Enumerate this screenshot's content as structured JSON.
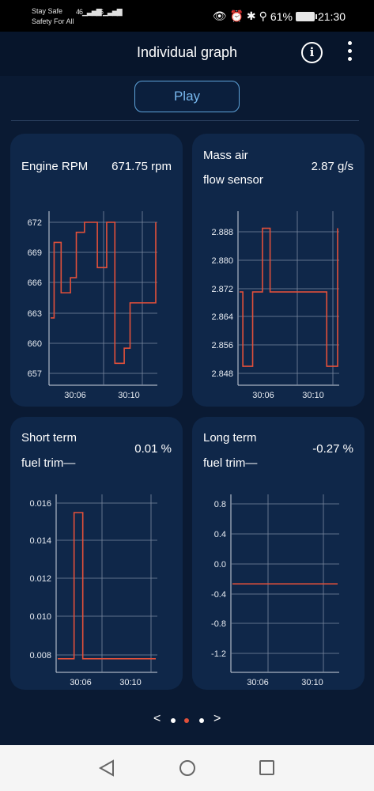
{
  "status_bar": {
    "carrier_line1": "Stay Safe",
    "carrier_line2": "Safety For All",
    "signal1": "46",
    "signal2": "46",
    "battery": "61%",
    "time": "21:30"
  },
  "header": {
    "title": "Individual graph"
  },
  "play_label": "Play",
  "cards": [
    {
      "name_line1": "Engine RPM",
      "name_line2": "",
      "value": "671.75 rpm"
    },
    {
      "name_line1": "Mass air",
      "name_line2": "flow sensor",
      "value": "2.87 g/s"
    },
    {
      "name_line1": "Short term",
      "name_line2": "fuel trim—",
      "value": "0.01 %"
    },
    {
      "name_line1": "Long term",
      "name_line2": "fuel trim—",
      "value": "-0.27 %"
    }
  ],
  "pager": {
    "prev": "<",
    "next": ">",
    "pages": 3,
    "active": 1
  },
  "colors": {
    "line": "#e2503a",
    "grid": "#7b8aa0",
    "card": "#0f2749",
    "background": "#0a1a33",
    "accent": "#78b8ee"
  },
  "chart_data": [
    {
      "type": "line",
      "series": [
        {
          "x": [
            "30:03",
            "30:03.3",
            "30:03.9",
            "30:04.7",
            "30:05.2",
            "30:05.9",
            "30:07.0",
            "30:07.8",
            "30:08.5",
            "30:09.3",
            "30:09.8",
            "30:10.6",
            "30:12.0"
          ],
          "values": [
            662.5,
            670,
            665,
            666.5,
            671,
            672,
            667.5,
            672,
            658,
            659.5,
            664,
            664,
            672
          ]
        }
      ],
      "y_ticks": [
        "672",
        "669",
        "666",
        "663",
        "660",
        "657"
      ],
      "x_ticks": [
        "30:06",
        "30:10"
      ],
      "ylim": [
        657,
        672
      ]
    },
    {
      "type": "line",
      "series": [
        {
          "x": [
            "30:03",
            "30:03.3",
            "30:04.2",
            "30:05.1",
            "30:05.8",
            "30:10.2",
            "30:11.0",
            "30:12.0"
          ],
          "values": [
            2.871,
            2.85,
            2.871,
            2.889,
            2.871,
            2.871,
            2.85,
            2.889
          ]
        }
      ],
      "y_ticks": [
        "2.888",
        "2.880",
        "2.872",
        "2.864",
        "2.856",
        "2.848"
      ],
      "x_ticks": [
        "30:06",
        "30:10"
      ],
      "ylim": [
        2.848,
        2.888
      ]
    },
    {
      "type": "line",
      "series": [
        {
          "x": [
            "30:03",
            "30:04.5",
            "30:05.3",
            "30:12.0"
          ],
          "values": [
            0.0078,
            0.0155,
            0.0078,
            0.0078
          ]
        }
      ],
      "y_ticks": [
        "0.016",
        "0.014",
        "0.012",
        "0.010",
        "0.008"
      ],
      "x_ticks": [
        "30:06",
        "30:10"
      ],
      "ylim": [
        0.008,
        0.016
      ]
    },
    {
      "type": "line",
      "series": [
        {
          "x": [
            "30:03",
            "30:12.0"
          ],
          "values": [
            -0.27,
            -0.27
          ]
        }
      ],
      "y_ticks": [
        "0.8",
        "0.4",
        "0.0",
        "-0.4",
        "-0.8",
        "-1.2"
      ],
      "x_ticks": [
        "30:06",
        "30:10"
      ],
      "ylim": [
        -1.2,
        0.8
      ]
    }
  ]
}
